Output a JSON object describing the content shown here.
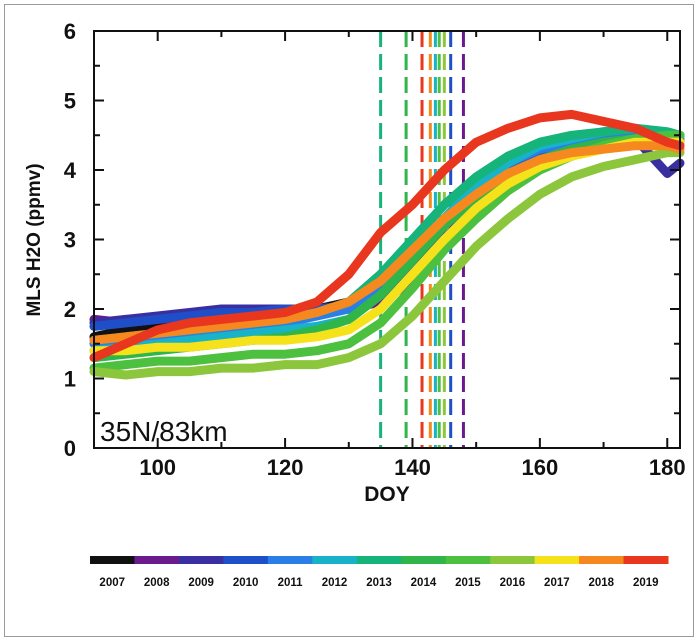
{
  "chart_data": {
    "type": "line",
    "xlabel": "DOY",
    "ylabel": "MLS H2O (ppmv)",
    "annotation": "35N/83km",
    "xlim": [
      90,
      182
    ],
    "ylim": [
      0,
      6
    ],
    "xticks": [
      100,
      120,
      140,
      160,
      180
    ],
    "yticks": [
      0,
      1,
      2,
      3,
      4,
      5,
      6
    ],
    "x": [
      90,
      95,
      100,
      105,
      110,
      115,
      120,
      125,
      130,
      135,
      140,
      145,
      150,
      155,
      160,
      165,
      170,
      175,
      180,
      182
    ],
    "series": [
      {
        "name": "2007",
        "color": "#111111",
        "values": [
          1.6,
          1.7,
          1.75,
          1.8,
          1.85,
          1.9,
          1.95,
          2.0,
          2.1,
          2.4,
          2.8,
          3.3,
          3.6,
          3.85,
          4.05,
          4.2,
          4.35,
          4.45,
          4.5,
          4.5
        ]
      },
      {
        "name": "2008",
        "color": "#6a1a8c",
        "values": [
          1.85,
          1.8,
          1.85,
          1.9,
          1.95,
          1.95,
          2.0,
          2.0,
          2.0,
          2.1,
          2.4,
          3.0,
          3.5,
          3.9,
          4.2,
          4.4,
          4.5,
          4.55,
          4.4,
          4.4
        ]
      },
      {
        "name": "2009",
        "color": "#3a2fa0",
        "values": [
          1.8,
          1.85,
          1.9,
          1.95,
          2.0,
          2.0,
          2.0,
          1.95,
          2.0,
          2.2,
          2.6,
          3.2,
          3.6,
          3.95,
          4.25,
          4.45,
          4.55,
          4.45,
          3.95,
          4.1
        ]
      },
      {
        "name": "2010",
        "color": "#1f4fc8",
        "values": [
          1.75,
          1.8,
          1.85,
          1.9,
          1.95,
          1.95,
          2.0,
          2.0,
          2.05,
          2.3,
          2.7,
          3.3,
          3.7,
          4.0,
          4.25,
          4.4,
          4.5,
          4.55,
          4.45,
          4.4
        ]
      },
      {
        "name": "2011",
        "color": "#2a7ee6",
        "values": [
          1.5,
          1.55,
          1.6,
          1.65,
          1.7,
          1.75,
          1.8,
          1.9,
          2.0,
          2.3,
          2.75,
          3.3,
          3.75,
          4.1,
          4.3,
          4.4,
          4.5,
          4.55,
          4.5,
          4.45
        ]
      },
      {
        "name": "2012",
        "color": "#18b3c8",
        "values": [
          1.4,
          1.45,
          1.5,
          1.55,
          1.6,
          1.65,
          1.7,
          1.75,
          1.85,
          2.2,
          2.7,
          3.3,
          3.8,
          4.1,
          4.35,
          4.45,
          4.55,
          4.6,
          4.55,
          4.5
        ]
      },
      {
        "name": "2013",
        "color": "#16b37a",
        "values": [
          1.55,
          1.6,
          1.65,
          1.7,
          1.75,
          1.8,
          1.85,
          1.95,
          2.1,
          2.5,
          3.0,
          3.5,
          3.9,
          4.2,
          4.4,
          4.5,
          4.55,
          4.6,
          4.55,
          4.5
        ]
      },
      {
        "name": "2014",
        "color": "#2fb54a",
        "values": [
          1.3,
          1.35,
          1.4,
          1.45,
          1.5,
          1.55,
          1.6,
          1.7,
          1.85,
          2.2,
          2.7,
          3.2,
          3.6,
          3.9,
          4.15,
          4.3,
          4.4,
          4.45,
          4.45,
          4.4
        ]
      },
      {
        "name": "2015",
        "color": "#4ec040",
        "values": [
          1.15,
          1.2,
          1.25,
          1.25,
          1.3,
          1.35,
          1.35,
          1.4,
          1.5,
          1.8,
          2.3,
          2.85,
          3.3,
          3.7,
          4.0,
          4.2,
          4.35,
          4.45,
          4.5,
          4.5
        ]
      },
      {
        "name": "2016",
        "color": "#8cc63c",
        "values": [
          1.1,
          1.05,
          1.1,
          1.1,
          1.15,
          1.15,
          1.2,
          1.2,
          1.3,
          1.5,
          1.9,
          2.4,
          2.9,
          3.3,
          3.65,
          3.9,
          4.05,
          4.15,
          4.25,
          4.25
        ]
      },
      {
        "name": "2017",
        "color": "#f5e21a",
        "values": [
          1.4,
          1.4,
          1.45,
          1.45,
          1.5,
          1.55,
          1.55,
          1.6,
          1.7,
          2.0,
          2.5,
          3.0,
          3.45,
          3.8,
          4.05,
          4.2,
          4.3,
          4.4,
          4.4,
          4.4
        ]
      },
      {
        "name": "2018",
        "color": "#f5891f",
        "values": [
          1.55,
          1.6,
          1.65,
          1.7,
          1.75,
          1.8,
          1.85,
          1.95,
          2.1,
          2.4,
          2.85,
          3.3,
          3.65,
          3.95,
          4.15,
          4.25,
          4.3,
          4.35,
          4.35,
          4.3
        ]
      },
      {
        "name": "2019",
        "color": "#e8371e",
        "values": [
          1.3,
          1.5,
          1.7,
          1.8,
          1.85,
          1.9,
          1.95,
          2.1,
          2.5,
          3.1,
          3.5,
          4.0,
          4.4,
          4.6,
          4.75,
          4.8,
          4.7,
          4.6,
          4.4,
          4.35
        ]
      }
    ],
    "vlines": [
      {
        "x": 135,
        "color": "#16b37a"
      },
      {
        "x": 139,
        "color": "#2fb54a"
      },
      {
        "x": 141.5,
        "color": "#e8371e"
      },
      {
        "x": 142.8,
        "color": "#f5891f"
      },
      {
        "x": 143.6,
        "color": "#18b3c8"
      },
      {
        "x": 144.2,
        "color": "#4ec040"
      },
      {
        "x": 145,
        "color": "#8cc63c"
      },
      {
        "x": 146,
        "color": "#1f4fc8"
      },
      {
        "x": 148,
        "color": "#6a1a8c"
      }
    ],
    "legend": {
      "placement": "bottom",
      "labels": [
        "2007",
        "2008",
        "2009",
        "2010",
        "2011",
        "2012",
        "2013",
        "2014",
        "2015",
        "2016",
        "2017",
        "2018",
        "2019"
      ]
    },
    "grid": false
  }
}
